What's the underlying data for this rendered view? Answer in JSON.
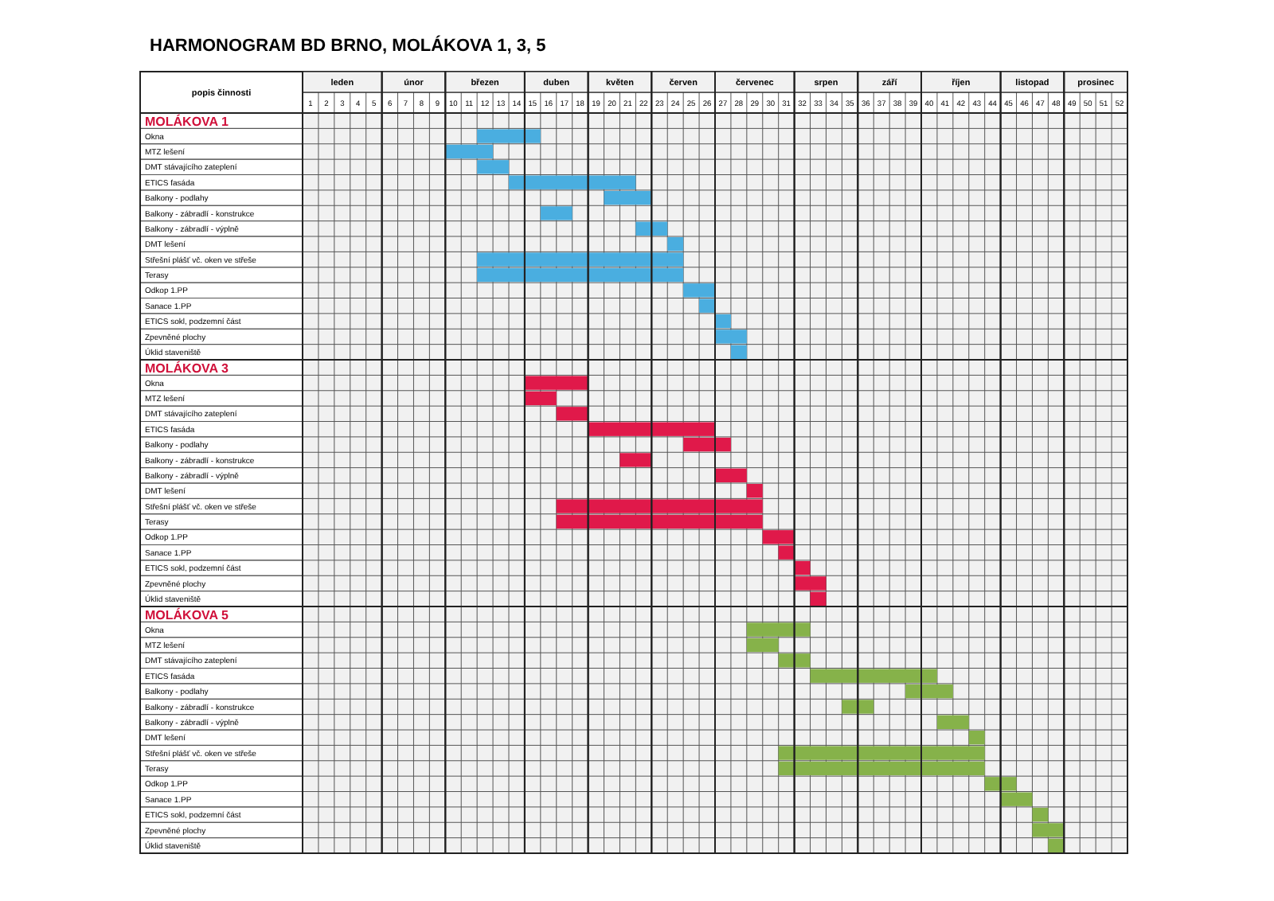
{
  "chart_data": [
    {
      "type": "bar",
      "orientation": "horizontal",
      "title": "HARMONOGRAM BD BRNO, MOLÁKOVA 1, 3, 5",
      "subtitle": "MOLÁKOVA 1",
      "ylabel": "popis činnosti",
      "grid": true,
      "color": "#4aaee0",
      "categories": [
        "Okna",
        "MTZ lešení",
        "DMT stávajícího zateplení",
        "ETICS fasáda",
        "Balkony - podlahy",
        "Balkony - zábradlí - konstrukce",
        "Balkony - zábradlí - výplně",
        "DMT lešení",
        "Střešní plášť vč. oken ve střeše",
        "Terasy",
        "Odkop 1.PP",
        "Sanace 1.PP",
        "ETICS sokl, podzemní část",
        "Zpevněné plochy",
        "Úklid staveniště"
      ],
      "base": [
        11,
        9,
        11,
        13,
        19,
        15,
        21,
        23,
        11,
        11,
        24,
        25,
        26,
        26,
        27
      ],
      "values": [
        4,
        3,
        2,
        8,
        3,
        2,
        2,
        1,
        13,
        13,
        2,
        1,
        1,
        2,
        1
      ],
      "xlim": [
        0,
        52
      ],
      "xticks": [
        {
          "value": 0.5,
          "label": "1"
        },
        {
          "value": 1.5,
          "label": "2"
        },
        {
          "value": 2.5,
          "label": "3"
        },
        {
          "value": 3.5,
          "label": "4"
        },
        {
          "value": 4.5,
          "label": "5"
        },
        {
          "value": 5.5,
          "label": "6"
        },
        {
          "value": 6.5,
          "label": "7"
        },
        {
          "value": 7.5,
          "label": "8"
        },
        {
          "value": 8.5,
          "label": "9"
        },
        {
          "value": 9.5,
          "label": "10"
        },
        {
          "value": 10.5,
          "label": "11"
        },
        {
          "value": 11.5,
          "label": "12"
        },
        {
          "value": 12.5,
          "label": "13"
        },
        {
          "value": 13.5,
          "label": "14"
        },
        {
          "value": 14.5,
          "label": "15"
        },
        {
          "value": 15.5,
          "label": "16"
        },
        {
          "value": 16.5,
          "label": "17"
        },
        {
          "value": 17.5,
          "label": "18"
        },
        {
          "value": 18.5,
          "label": "19"
        },
        {
          "value": 19.5,
          "label": "20"
        },
        {
          "value": 20.5,
          "label": "21"
        },
        {
          "value": 21.5,
          "label": "22"
        },
        {
          "value": 22.5,
          "label": "23"
        },
        {
          "value": 23.5,
          "label": "24"
        },
        {
          "value": 24.5,
          "label": "25"
        },
        {
          "value": 25.5,
          "label": "26"
        },
        {
          "value": 26.5,
          "label": "27"
        },
        {
          "value": 27.5,
          "label": "28"
        },
        {
          "value": 28.5,
          "label": "29"
        },
        {
          "value": 29.5,
          "label": "30"
        },
        {
          "value": 30.5,
          "label": "31"
        },
        {
          "value": 31.5,
          "label": "32"
        },
        {
          "value": 32.5,
          "label": "33"
        },
        {
          "value": 33.5,
          "label": "34"
        },
        {
          "value": 34.5,
          "label": "35"
        },
        {
          "value": 35.5,
          "label": "36"
        },
        {
          "value": 36.5,
          "label": "37"
        },
        {
          "value": 37.5,
          "label": "38"
        },
        {
          "value": 38.5,
          "label": "39"
        },
        {
          "value": 39.5,
          "label": "40"
        },
        {
          "value": 40.5,
          "label": "41"
        },
        {
          "value": 41.5,
          "label": "42"
        },
        {
          "value": 42.5,
          "label": "43"
        },
        {
          "value": 43.5,
          "label": "44"
        },
        {
          "value": 44.5,
          "label": "45"
        },
        {
          "value": 45.5,
          "label": "46"
        },
        {
          "value": 46.5,
          "label": "47"
        },
        {
          "value": 47.5,
          "label": "48"
        },
        {
          "value": 48.5,
          "label": "49"
        },
        {
          "value": 49.5,
          "label": "50"
        },
        {
          "value": 50.5,
          "label": "51"
        },
        {
          "value": 51.5,
          "label": "52"
        }
      ],
      "bands": [
        {
          "axis": "x",
          "from": 0,
          "to": 5,
          "label": "leden",
          "color": "#f1f1f1"
        },
        {
          "axis": "x",
          "from": 5,
          "to": 9,
          "label": "únor",
          "color": "#f1f1f1"
        },
        {
          "axis": "x",
          "from": 9,
          "to": 14,
          "label": "březen",
          "color": "#f1f1f1"
        },
        {
          "axis": "x",
          "from": 14,
          "to": 18,
          "label": "duben",
          "color": "#f1f1f1"
        },
        {
          "axis": "x",
          "from": 18,
          "to": 22,
          "label": "květen",
          "color": "#f1f1f1"
        },
        {
          "axis": "x",
          "from": 22,
          "to": 26,
          "label": "červen",
          "color": "#f1f1f1"
        },
        {
          "axis": "x",
          "from": 26,
          "to": 31,
          "label": "červenec",
          "color": "#f1f1f1"
        },
        {
          "axis": "x",
          "from": 31,
          "to": 35,
          "label": "srpen",
          "color": "#f1f1f1"
        },
        {
          "axis": "x",
          "from": 35,
          "to": 39,
          "label": "září",
          "color": "#f1f1f1"
        },
        {
          "axis": "x",
          "from": 39,
          "to": 44,
          "label": "říjen",
          "color": "#f1f1f1"
        },
        {
          "axis": "x",
          "from": 44,
          "to": 48,
          "label": "listopad",
          "color": "#f1f1f1"
        },
        {
          "axis": "x",
          "from": 48,
          "to": 52,
          "label": "prosinec",
          "color": "#f1f1f1"
        }
      ]
    },
    {
      "type": "bar",
      "orientation": "horizontal",
      "subtitle": "MOLÁKOVA 3",
      "grid": true,
      "color": "#e0194a",
      "tick_labels": "y",
      "categories": [
        "Okna",
        "MTZ lešení",
        "DMT stávajícího zateplení",
        "ETICS fasáda",
        "Balkony - podlahy",
        "Balkony - zábradlí - konstrukce",
        "Balkony - zábradlí - výplně",
        "DMT lešení",
        "Střešní plášť vč. oken ve střeše",
        "Terasy",
        "Odkop 1.PP",
        "Sanace 1.PP",
        "ETICS sokl, podzemní část",
        "Zpevněné plochy",
        "Úklid staveniště"
      ],
      "base": [
        14,
        14,
        16,
        18,
        24,
        20,
        26,
        28,
        16,
        16,
        29,
        30,
        31,
        31,
        32
      ],
      "values": [
        4,
        2,
        2,
        8,
        3,
        2,
        2,
        1,
        13,
        13,
        2,
        1,
        1,
        2,
        1
      ],
      "xlim": [
        0,
        52
      ]
    },
    {
      "type": "bar",
      "orientation": "horizontal",
      "subtitle": "MOLÁKOVA 5",
      "grid": true,
      "color": "#86b24a",
      "tick_labels": "y",
      "categories": [
        "Okna",
        "MTZ lešení",
        "DMT stávajícího zateplení",
        "ETICS fasáda",
        "Balkony - podlahy",
        "Balkony - zábradlí - konstrukce",
        "Balkony - zábradlí - výplně",
        "DMT lešení",
        "Střešní plášť vč. oken ve střeše",
        "Terasy",
        "Odkop 1.PP",
        "Sanace 1.PP",
        "ETICS sokl, podzemní část",
        "Zpevněné plochy",
        "Úklid staveniště"
      ],
      "base": [
        28,
        28,
        30,
        32,
        38,
        34,
        40,
        42,
        30,
        30,
        43,
        44,
        46,
        46,
        47
      ],
      "values": [
        4,
        2,
        2,
        8,
        3,
        2,
        2,
        1,
        13,
        13,
        2,
        2,
        1,
        2,
        1
      ],
      "xlim": [
        0,
        52
      ]
    }
  ]
}
